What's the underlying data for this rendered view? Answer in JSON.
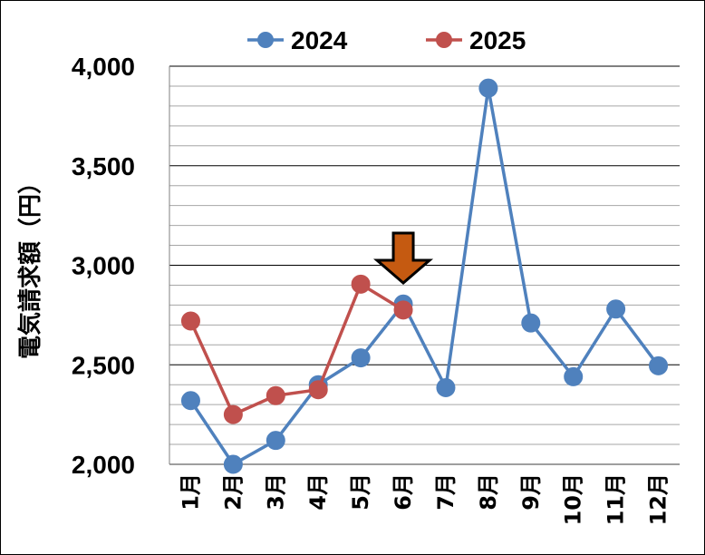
{
  "chart_data": {
    "type": "line",
    "categories": [
      "1月",
      "2月",
      "3月",
      "4月",
      "5月",
      "6月",
      "7月",
      "8月",
      "9月",
      "10月",
      "11月",
      "12月"
    ],
    "series": [
      {
        "name": "2024",
        "color": "#4f81bd",
        "values": [
          2320,
          2000,
          2120,
          2400,
          2535,
          2805,
          2385,
          3890,
          2710,
          2440,
          2780,
          2495
        ]
      },
      {
        "name": "2025",
        "color": "#c0504d",
        "values": [
          2720,
          2250,
          2345,
          2375,
          2905,
          2775,
          null,
          null,
          null,
          null,
          null,
          null
        ]
      }
    ],
    "ylabel": "電気請求額（円）",
    "ylim": [
      2000,
      4000
    ],
    "yticks": [
      2000,
      2500,
      3000,
      3500,
      4000
    ],
    "ytick_labels": [
      "2,000",
      "2,500",
      "3,000",
      "3,500",
      "4,000"
    ],
    "minor_grid_step": 100,
    "grid": true,
    "legend_position": "top",
    "annotation": {
      "type": "arrow",
      "category": "6月",
      "color": "#c55a11",
      "pointing": "down"
    }
  }
}
